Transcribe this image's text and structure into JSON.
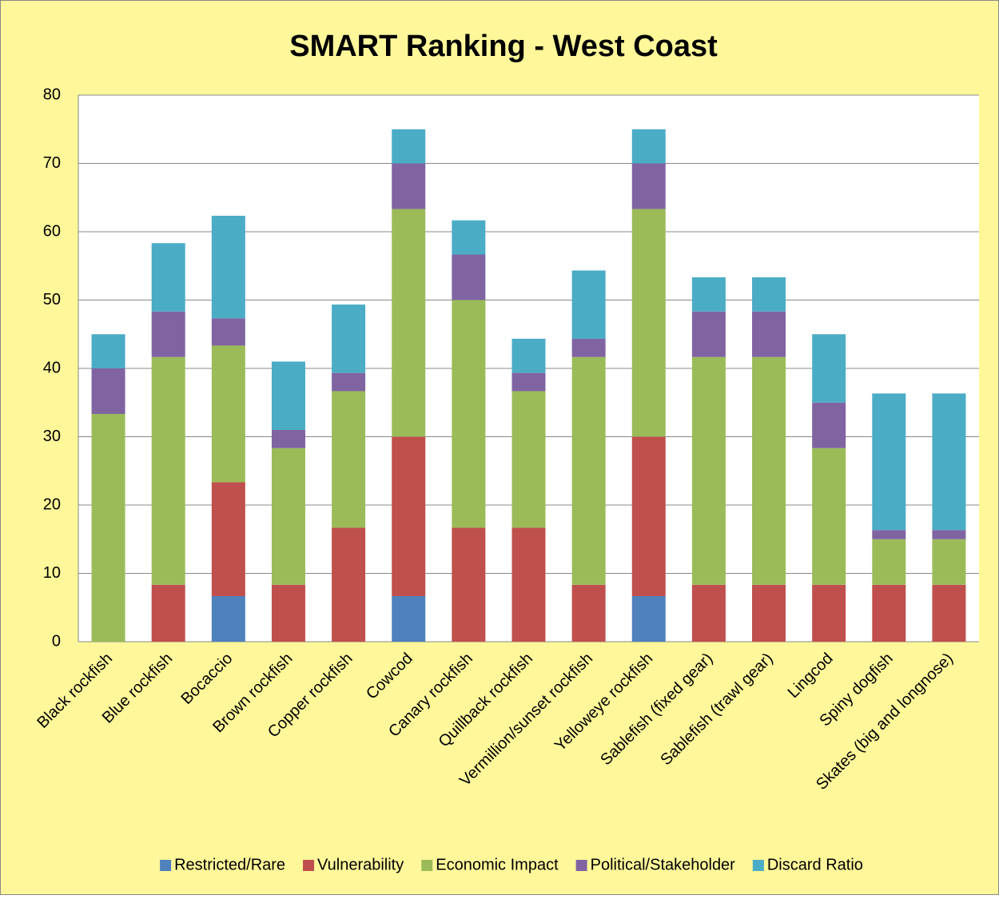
{
  "chart_data": {
    "type": "stacked_bar",
    "title": "SMART Ranking - West Coast",
    "categories": [
      "Black rockfish",
      "Blue rockfish",
      "Bocaccio",
      "Brown rockfish",
      "Copper rockfish",
      "Cowcod",
      "Canary rockfish",
      "Quillback rockfish",
      "Vermillion/sunset rockfish",
      "Yelloweye rockfish",
      "Sablefish (fixed gear)",
      "Sablefish (trawl gear)",
      "Lingcod",
      "Spiny dogfish",
      "Skates (big and longnose)"
    ],
    "series": [
      {
        "name": "Restricted/Rare",
        "color": "#4f81bd",
        "values": [
          0,
          0,
          6.67,
          0,
          0,
          6.67,
          0,
          0,
          0,
          6.67,
          0,
          0,
          0,
          0,
          0
        ]
      },
      {
        "name": "Vulnerability",
        "color": "#c0504d",
        "values": [
          0,
          8.33,
          16.67,
          8.33,
          16.67,
          23.33,
          16.67,
          16.67,
          8.33,
          23.33,
          8.33,
          8.33,
          8.33,
          8.33,
          8.33
        ]
      },
      {
        "name": "Economic Impact",
        "color": "#9bbb59",
        "values": [
          33.33,
          33.33,
          20,
          20,
          20,
          33.33,
          33.33,
          20,
          33.33,
          33.33,
          33.33,
          33.33,
          20,
          6.67,
          6.67
        ]
      },
      {
        "name": "Political/Stakeholder",
        "color": "#8064a2",
        "values": [
          6.67,
          6.67,
          4,
          2.67,
          2.67,
          6.67,
          6.67,
          2.67,
          2.67,
          6.67,
          6.67,
          6.67,
          6.67,
          1.33,
          1.33
        ]
      },
      {
        "name": "Discard Ratio",
        "color": "#4bacc6",
        "values": [
          5,
          10,
          15,
          10,
          10,
          5,
          5,
          5,
          10,
          5,
          5,
          5,
          10,
          20,
          20
        ]
      }
    ],
    "ylim": [
      0,
      80
    ],
    "yticks": [
      0,
      10,
      20,
      30,
      40,
      50,
      60,
      70,
      80
    ],
    "grid": true,
    "legend": "bottom"
  }
}
